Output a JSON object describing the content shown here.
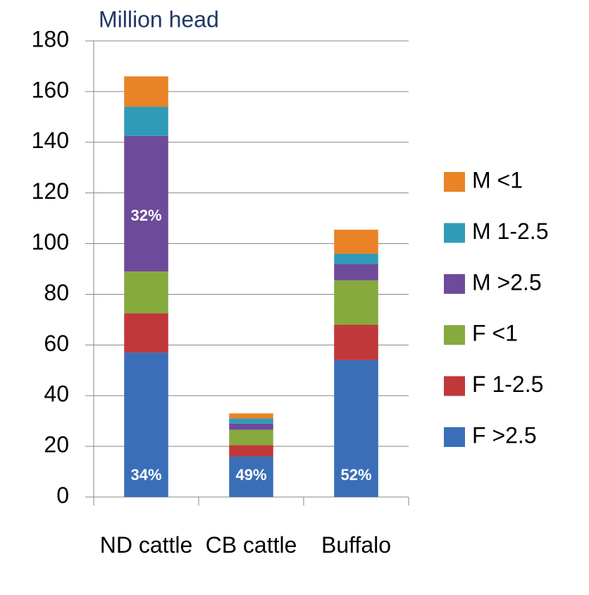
{
  "chart_data": {
    "type": "stacked_bar",
    "title": "Million head",
    "categories": [
      "ND cattle",
      "CB cattle",
      "Buffalo"
    ],
    "series": [
      {
        "name": "F >2.5",
        "color": "#3a6fb8",
        "values": [
          57,
          16,
          54
        ]
      },
      {
        "name": "F 1-2.5",
        "color": "#c0383a",
        "values": [
          15.5,
          4.5,
          14
        ]
      },
      {
        "name": "F <1",
        "color": "#86aa3e",
        "values": [
          16.5,
          6,
          17.5
        ]
      },
      {
        "name": "M >2.5",
        "color": "#6e4a9a",
        "values": [
          53.5,
          2.5,
          6.5
        ]
      },
      {
        "name": "M 1-2.5",
        "color": "#2f9bb7",
        "values": [
          11.5,
          2,
          4
        ]
      },
      {
        "name": "M <1",
        "color": "#e98326",
        "values": [
          12,
          2,
          9.5
        ]
      }
    ],
    "annotations": [
      {
        "text": "34%",
        "series": "F >2.5",
        "category": "ND cattle"
      },
      {
        "text": "32%",
        "series": "M >2.5",
        "category": "ND cattle"
      },
      {
        "text": "49%",
        "series": "F >2.5",
        "category": "CB cattle"
      },
      {
        "text": "52%",
        "series": "F >2.5",
        "category": "Buffalo"
      }
    ],
    "ylim": [
      0,
      180
    ],
    "yticks": [
      0,
      20,
      40,
      60,
      80,
      100,
      120,
      140,
      160,
      180
    ],
    "grid": true,
    "legend": "right"
  }
}
